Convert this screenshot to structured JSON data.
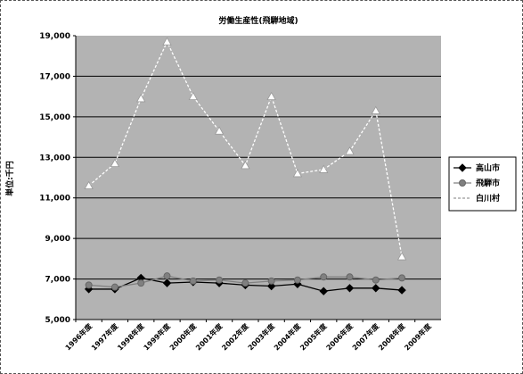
{
  "chart_data": {
    "type": "line",
    "title": "労働生産性(飛騨地域)",
    "ylabel": "単位:千円",
    "xlabel": "",
    "ylim": [
      5000,
      19000
    ],
    "yticks": [
      5000,
      7000,
      9000,
      11000,
      13000,
      15000,
      17000,
      19000
    ],
    "ytick_labels": [
      "5,000",
      "7,000",
      "9,000",
      "11,000",
      "13,000",
      "15,000",
      "17,000",
      "19,000"
    ],
    "gridlines": [
      7000,
      9000,
      11000,
      13000,
      15000,
      17000
    ],
    "categories": [
      "1996年度",
      "1997年度",
      "1998年度",
      "1999年度",
      "2000年度",
      "2001年度",
      "2002年度",
      "2003年度",
      "2004年度",
      "2005年度",
      "2006年度",
      "2007年度",
      "2008年度",
      "2009年度"
    ],
    "series": [
      {
        "name": "高山市",
        "marker": "diamond",
        "style": "solid",
        "color": "#000000",
        "values": [
          6500,
          6500,
          7050,
          6800,
          6850,
          6800,
          6700,
          6650,
          6750,
          6400,
          6550,
          6550,
          6450,
          null
        ]
      },
      {
        "name": "飛騨市",
        "marker": "circle",
        "style": "solid",
        "color": "#808080",
        "values": [
          6700,
          6600,
          6800,
          7150,
          6900,
          6950,
          6800,
          6900,
          6950,
          7100,
          7100,
          6950,
          7050,
          null
        ]
      },
      {
        "name": "白川村",
        "marker": "triangle",
        "style": "dashed",
        "color": "#ffffff",
        "values": [
          11600,
          12700,
          15900,
          18700,
          16000,
          14300,
          12600,
          16000,
          12200,
          12400,
          13300,
          15300,
          8100,
          null
        ]
      }
    ],
    "legend_position": "right",
    "plot_background": "#b3b3b3"
  }
}
